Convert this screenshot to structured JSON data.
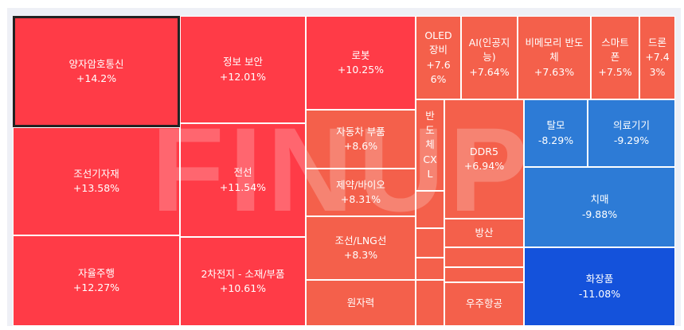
{
  "watermark": "FINUP",
  "colors": {
    "red": "#ff3b47",
    "orange_red": "#f4604b",
    "blue": "#2d7bd6",
    "deep_blue": "#1452db",
    "selected_border": "#222222"
  },
  "chart_data": {
    "type": "treemap",
    "tiles": [
      {
        "label": "양자암호통신",
        "value": "+14.2%",
        "change": 14.2,
        "selected": true
      },
      {
        "label": "조선기자재",
        "value": "+13.58%",
        "change": 13.58
      },
      {
        "label": "자율주행",
        "value": "+12.27%",
        "change": 12.27
      },
      {
        "label": "정보 보안",
        "value": "+12.01%",
        "change": 12.01
      },
      {
        "label": "전선",
        "value": "+11.54%",
        "change": 11.54
      },
      {
        "label": "2차전지 - 소재/부품",
        "value": "+10.61%",
        "change": 10.61
      },
      {
        "label": "로봇",
        "value": "+10.25%",
        "change": 10.25
      },
      {
        "label": "자동차 부품",
        "value": "+8.6%",
        "change": 8.6
      },
      {
        "label": "제약/바이오",
        "value": "+8.31%",
        "change": 8.31
      },
      {
        "label": "조선/LNG선",
        "value": "+8.3%",
        "change": 8.3
      },
      {
        "label": "원자력",
        "value": "",
        "change": null
      },
      {
        "label": "OLED\n장비",
        "value": "+7.6\n6%",
        "change": 7.66
      },
      {
        "label": "AI(인공지\n능)",
        "value": "+7.64%",
        "change": 7.64
      },
      {
        "label": "비메모리 반도\n체",
        "value": "+7.63%",
        "change": 7.63
      },
      {
        "label": "스마트\n폰",
        "value": "+7.5%",
        "change": 7.5
      },
      {
        "label": "드론",
        "value": "+7.4\n3%",
        "change": 7.43
      },
      {
        "label": "반\n도\n체\nCX\nL",
        "value": "",
        "change": null
      },
      {
        "label": "DDR5",
        "value": "+6.94%",
        "change": 6.94
      },
      {
        "label": "방산",
        "value": "",
        "change": null
      },
      {
        "label": "우주항공",
        "value": "",
        "change": null
      },
      {
        "label": "탈모",
        "value": "-8.29%",
        "change": -8.29
      },
      {
        "label": "의료기기",
        "value": "-9.29%",
        "change": -9.29
      },
      {
        "label": "치매",
        "value": "-9.88%",
        "change": -9.88
      },
      {
        "label": "화장품",
        "value": "-11.08%",
        "change": -11.08
      },
      {
        "label": "",
        "value": "",
        "change": null
      },
      {
        "label": "",
        "value": "",
        "change": null
      },
      {
        "label": "",
        "value": "",
        "change": null
      },
      {
        "label": "",
        "value": "",
        "change": null
      },
      {
        "label": "",
        "value": "",
        "change": null
      },
      {
        "label": "",
        "value": "",
        "change": null
      }
    ]
  }
}
